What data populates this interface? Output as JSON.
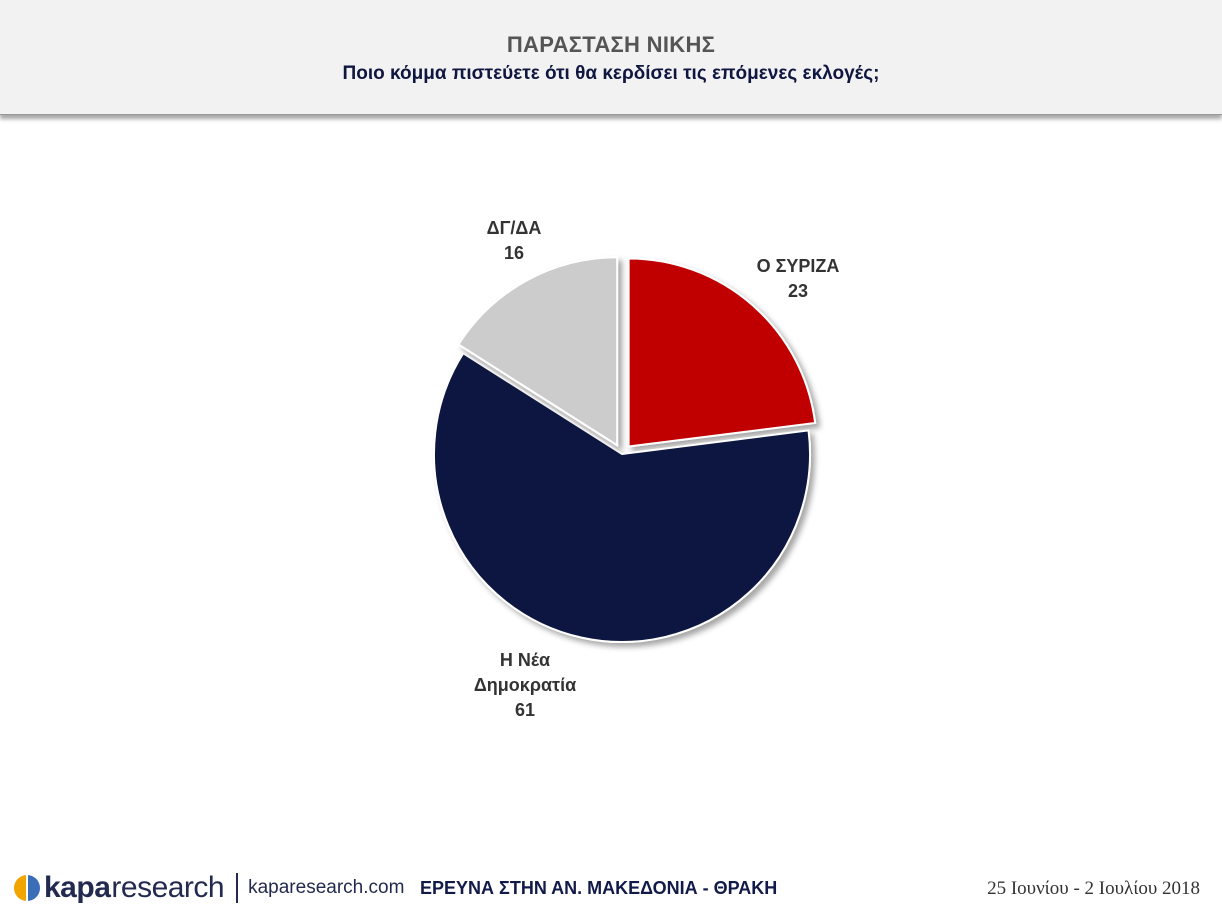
{
  "header": {
    "title": "ΠΑΡΑΣΤΑΣΗ ΝΙΚΗΣ",
    "subtitle": "Ποιο κόμμα πιστεύετε ότι θα κερδίσει τις επόμενες εκλογές;"
  },
  "chart_data": {
    "type": "pie",
    "title": "",
    "slices": [
      {
        "label_lines": [
          "Ο ΣΥΡΙΖΑ"
        ],
        "value": 23,
        "color": "#c00000",
        "exploded": true
      },
      {
        "label_lines": [
          "Η Νέα",
          "Δημοκρατία"
        ],
        "value": 61,
        "color": "#0b163f",
        "exploded": false
      },
      {
        "label_lines": [
          "ΔΓ/ΔΑ"
        ],
        "value": 16,
        "color": "#cccccc",
        "exploded": true
      }
    ]
  },
  "footer": {
    "logo_bold": "kapa",
    "logo_light": "research",
    "website": "kaparesearch.com",
    "survey": "ΕΡΕΥΝΑ ΣΤΗΝ ΑΝ. ΜΑΚΕΔΟΝΙΑ - ΘΡΑΚΗ",
    "date": "25 Ιουνίου - 2 Ιουλίου 2018",
    "logo_colors": [
      "#f0a500",
      "#3a6fb7"
    ]
  }
}
